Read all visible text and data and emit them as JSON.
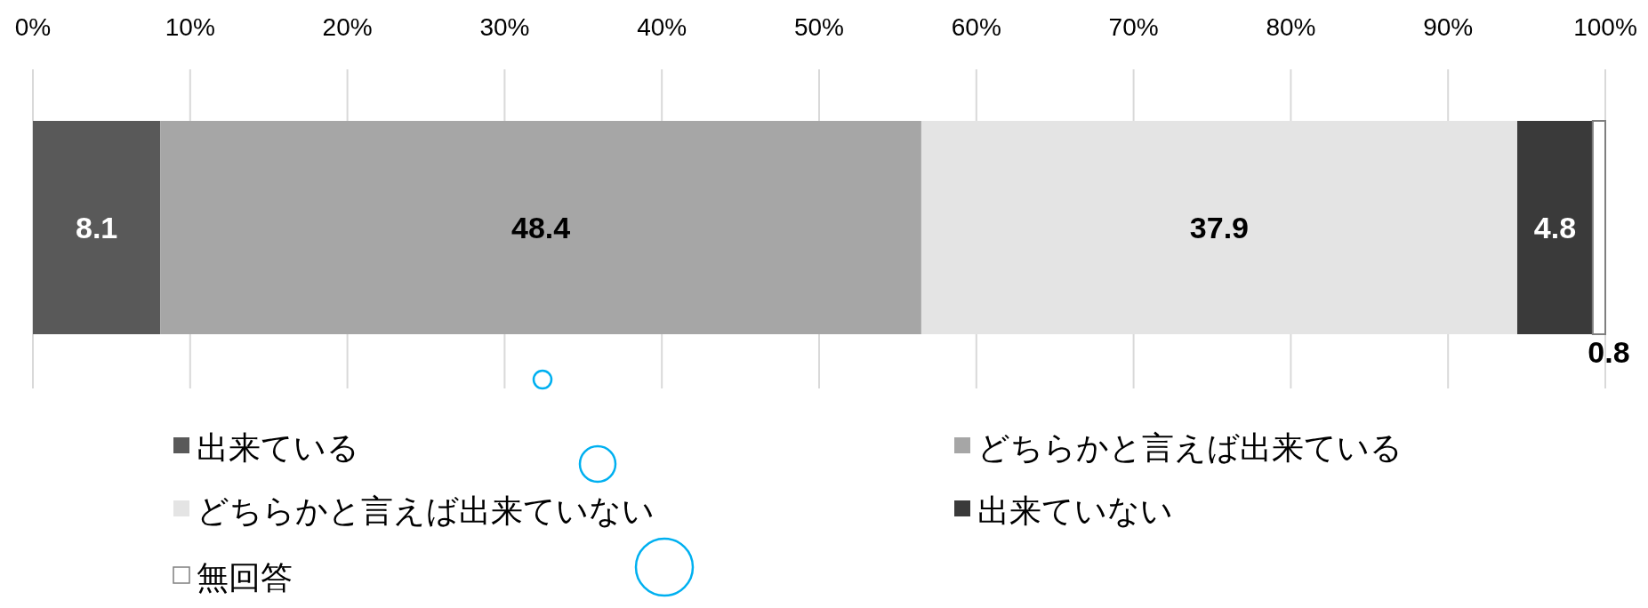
{
  "chart_data": {
    "type": "bar",
    "orientation": "horizontal",
    "stacked": true,
    "categories": [
      null
    ],
    "series": [
      {
        "name": "出来ている",
        "color": "#595959",
        "values": [
          8.1
        ]
      },
      {
        "name": "どちらかと言えば出来ている",
        "color": "#a6a6a6",
        "values": [
          48.4
        ]
      },
      {
        "name": "どちらかと言えば出来ていない",
        "color": "#e4e4e4",
        "values": [
          37.9
        ]
      },
      {
        "name": "出来ていない",
        "color": "#3a3a3a",
        "values": [
          4.8
        ]
      },
      {
        "name": "無回答",
        "color": "#ffffff",
        "values": [
          0.8
        ]
      }
    ],
    "xlim": [
      0,
      100
    ],
    "xticks": [
      {
        "value": 0,
        "label": "0%"
      },
      {
        "value": 10,
        "label": "10%"
      },
      {
        "value": 20,
        "label": "20%"
      },
      {
        "value": 30,
        "label": "30%"
      },
      {
        "value": 40,
        "label": "40%"
      },
      {
        "value": 50,
        "label": "50%"
      },
      {
        "value": 60,
        "label": "60%"
      },
      {
        "value": 70,
        "label": "70%"
      },
      {
        "value": 80,
        "label": "80%"
      },
      {
        "value": 90,
        "label": "90%"
      },
      {
        "value": 100,
        "label": "100%"
      }
    ],
    "grid": "x",
    "data_labels": true,
    "legend": "bottom"
  }
}
